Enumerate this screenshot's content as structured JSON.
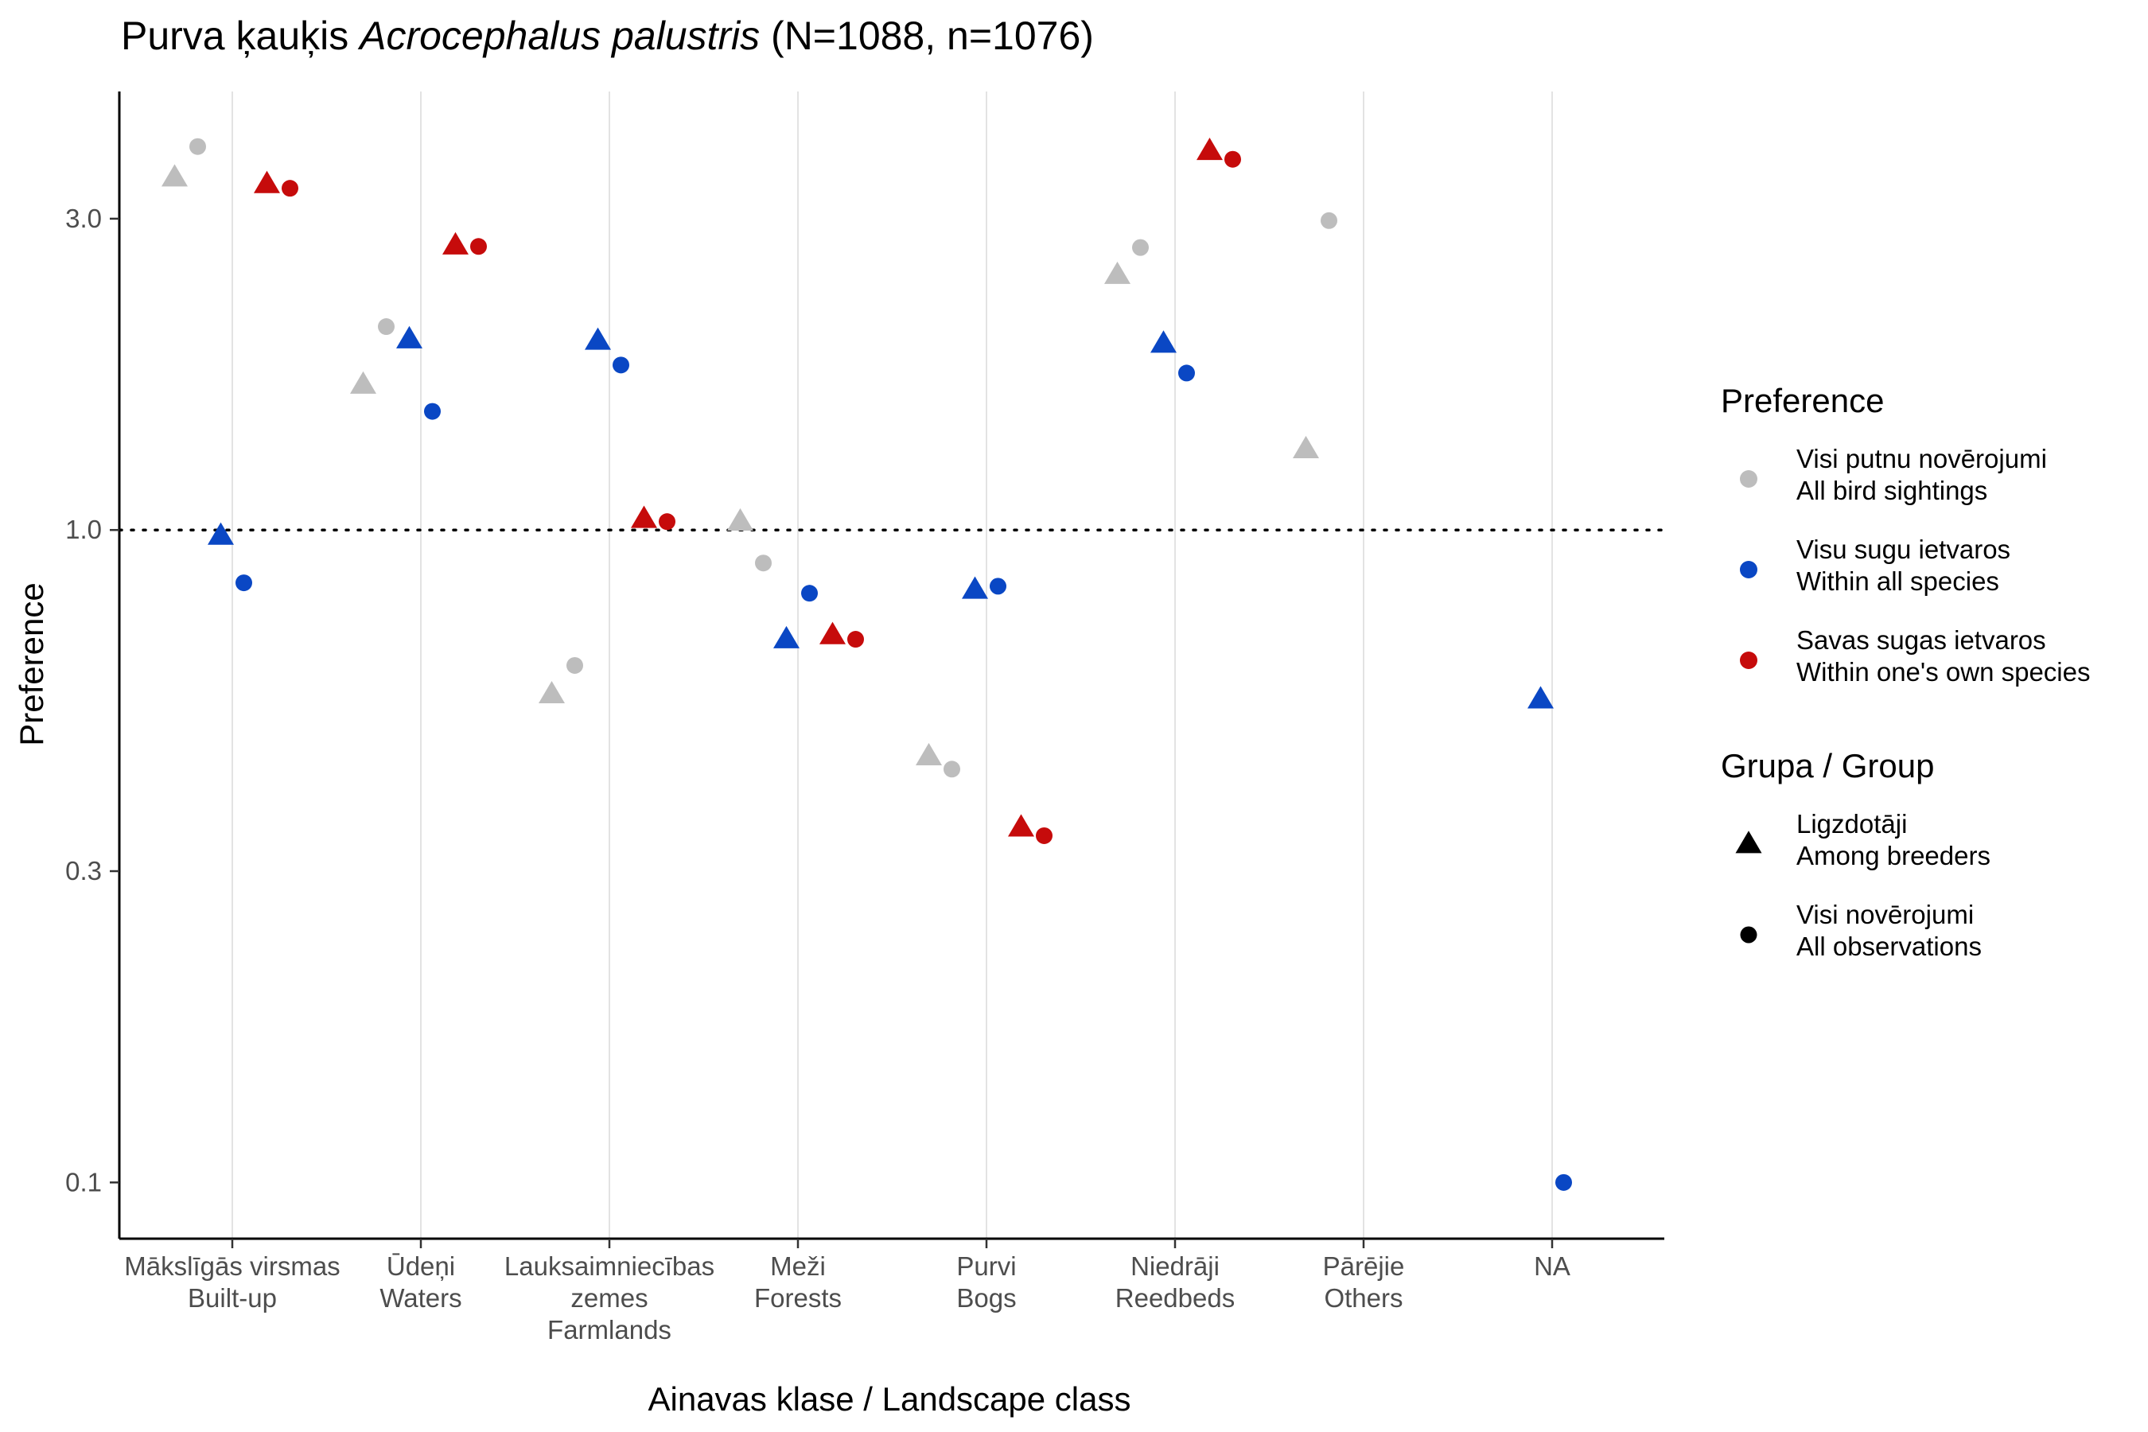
{
  "chart_data": {
    "type": "scatter",
    "title_plain": "Purva ķauķis ",
    "title_italic": "Acrocephalus palustris",
    "title_suffix": " (N=1088, n=1076)",
    "xlabel": "Ainavas klase / Landscape class",
    "ylabel": "Preference",
    "y_scale": "log",
    "ylim": [
      0.082,
      4.7
    ],
    "y_ticks": [
      {
        "value": 0.1,
        "label": "0.1"
      },
      {
        "value": 0.3,
        "label": "0.3"
      },
      {
        "value": 1.0,
        "label": "1.0"
      },
      {
        "value": 3.0,
        "label": "3.0"
      }
    ],
    "reference_line": 1.0,
    "grid": "vertical major lines only",
    "categories": [
      {
        "lines": [
          "Mākslīgās virsmas",
          "Built-up"
        ]
      },
      {
        "lines": [
          "Ūdeņi",
          "Waters"
        ]
      },
      {
        "lines": [
          "Lauksaimniecības",
          "zemes",
          "Farmlands"
        ]
      },
      {
        "lines": [
          "Meži",
          "Forests"
        ]
      },
      {
        "lines": [
          "Purvi",
          "Bogs"
        ]
      },
      {
        "lines": [
          "Niedrāji",
          "Reedbeds"
        ]
      },
      {
        "lines": [
          "Pārējie",
          "Others"
        ]
      },
      {
        "lines": [
          "NA"
        ]
      }
    ],
    "legend": {
      "placement": "right",
      "preference_title": "Preference",
      "preference_items": [
        {
          "key": "all_sightings",
          "color": "#bdbdbd",
          "line1": "Visi putnu novērojumi",
          "line2": "All bird sightings"
        },
        {
          "key": "within_all",
          "color": "#0a47c4",
          "line1": "Visu sugu ietvaros",
          "line2": "Within all species"
        },
        {
          "key": "within_own",
          "color": "#c60b0b",
          "line1": "Savas sugas ietvaros",
          "line2": "Within one's own species"
        }
      ],
      "group_title": "Grupa / Group",
      "group_items": [
        {
          "shape": "triangle",
          "line1": "Ligzdotāji",
          "line2": "Among breeders"
        },
        {
          "shape": "circle",
          "line1": "Visi novērojumi",
          "line2": "All observations"
        }
      ]
    },
    "points": [
      {
        "category": 0,
        "preference": "all_sightings",
        "group": "triangle",
        "y": 3.47
      },
      {
        "category": 0,
        "preference": "all_sightings",
        "group": "circle",
        "y": 3.87
      },
      {
        "category": 0,
        "preference": "within_all",
        "group": "triangle",
        "y": 0.98
      },
      {
        "category": 0,
        "preference": "within_all",
        "group": "circle",
        "y": 0.83
      },
      {
        "category": 0,
        "preference": "within_own",
        "group": "triangle",
        "y": 3.39
      },
      {
        "category": 0,
        "preference": "within_own",
        "group": "circle",
        "y": 3.34
      },
      {
        "category": 1,
        "preference": "all_sightings",
        "group": "triangle",
        "y": 1.67
      },
      {
        "category": 1,
        "preference": "all_sightings",
        "group": "circle",
        "y": 2.05
      },
      {
        "category": 1,
        "preference": "within_all",
        "group": "triangle",
        "y": 1.96
      },
      {
        "category": 1,
        "preference": "within_all",
        "group": "circle",
        "y": 1.52
      },
      {
        "category": 1,
        "preference": "within_own",
        "group": "triangle",
        "y": 2.73
      },
      {
        "category": 1,
        "preference": "within_own",
        "group": "circle",
        "y": 2.72
      },
      {
        "category": 2,
        "preference": "all_sightings",
        "group": "triangle",
        "y": 0.56
      },
      {
        "category": 2,
        "preference": "all_sightings",
        "group": "circle",
        "y": 0.62
      },
      {
        "category": 2,
        "preference": "within_all",
        "group": "triangle",
        "y": 1.95
      },
      {
        "category": 2,
        "preference": "within_all",
        "group": "circle",
        "y": 1.79
      },
      {
        "category": 2,
        "preference": "within_own",
        "group": "triangle",
        "y": 1.04
      },
      {
        "category": 2,
        "preference": "within_own",
        "group": "circle",
        "y": 1.03
      },
      {
        "category": 3,
        "preference": "all_sightings",
        "group": "triangle",
        "y": 1.03
      },
      {
        "category": 3,
        "preference": "all_sightings",
        "group": "circle",
        "y": 0.89
      },
      {
        "category": 3,
        "preference": "within_all",
        "group": "triangle",
        "y": 0.68
      },
      {
        "category": 3,
        "preference": "within_all",
        "group": "circle",
        "y": 0.8
      },
      {
        "category": 3,
        "preference": "within_own",
        "group": "triangle",
        "y": 0.69
      },
      {
        "category": 3,
        "preference": "within_own",
        "group": "circle",
        "y": 0.68
      },
      {
        "category": 4,
        "preference": "all_sightings",
        "group": "triangle",
        "y": 0.45
      },
      {
        "category": 4,
        "preference": "all_sightings",
        "group": "circle",
        "y": 0.43
      },
      {
        "category": 4,
        "preference": "within_all",
        "group": "triangle",
        "y": 0.81
      },
      {
        "category": 4,
        "preference": "within_all",
        "group": "circle",
        "y": 0.82
      },
      {
        "category": 4,
        "preference": "within_own",
        "group": "triangle",
        "y": 0.35
      },
      {
        "category": 4,
        "preference": "within_own",
        "group": "circle",
        "y": 0.34
      },
      {
        "category": 5,
        "preference": "all_sightings",
        "group": "triangle",
        "y": 2.46
      },
      {
        "category": 5,
        "preference": "all_sightings",
        "group": "circle",
        "y": 2.71
      },
      {
        "category": 5,
        "preference": "within_all",
        "group": "triangle",
        "y": 1.93
      },
      {
        "category": 5,
        "preference": "within_all",
        "group": "circle",
        "y": 1.74
      },
      {
        "category": 5,
        "preference": "within_own",
        "group": "triangle",
        "y": 3.81
      },
      {
        "category": 5,
        "preference": "within_own",
        "group": "circle",
        "y": 3.7
      },
      {
        "category": 6,
        "preference": "all_sightings",
        "group": "triangle",
        "y": 1.33
      },
      {
        "category": 6,
        "preference": "all_sightings",
        "group": "circle",
        "y": 2.98
      },
      {
        "category": 7,
        "preference": "within_all",
        "group": "triangle",
        "y": 0.55
      },
      {
        "category": 7,
        "preference": "within_all",
        "group": "circle",
        "y": 0.1
      }
    ]
  }
}
